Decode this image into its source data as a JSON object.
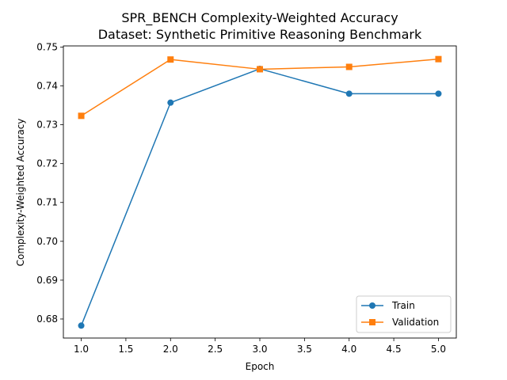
{
  "chart_data": {
    "type": "line",
    "title": "SPR_BENCH Complexity-Weighted Accuracy",
    "subtitle": "Dataset: Synthetic Primitive Reasoning Benchmark",
    "xlabel": "Epoch",
    "ylabel": "Complexity-Weighted Accuracy",
    "x": [
      1,
      2,
      3,
      4,
      5
    ],
    "xlim": [
      0.8,
      5.2
    ],
    "ylim": [
      0.6751,
      0.7503
    ],
    "xticks": [
      "1.0",
      "1.5",
      "2.0",
      "2.5",
      "3.0",
      "3.5",
      "4.0",
      "4.5",
      "5.0"
    ],
    "yticks": [
      "0.68",
      "0.69",
      "0.70",
      "0.71",
      "0.72",
      "0.73",
      "0.74",
      "0.75"
    ],
    "grid": false,
    "legend_position": "bottom-right",
    "series": [
      {
        "name": "Train",
        "values": [
          0.6783,
          0.7357,
          0.7444,
          0.738,
          0.738
        ],
        "color": "#1f77b4",
        "marker": "circle"
      },
      {
        "name": "Validation",
        "values": [
          0.7323,
          0.7468,
          0.7443,
          0.7449,
          0.7469
        ],
        "color": "#ff7f0e",
        "marker": "square"
      }
    ]
  }
}
